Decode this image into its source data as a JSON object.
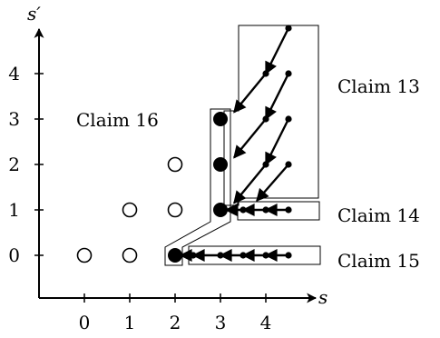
{
  "axes": {
    "x_label": "s",
    "y_label": "s′",
    "x_ticks": [
      "0",
      "1",
      "2",
      "3",
      "4"
    ],
    "y_ticks": [
      "0",
      "1",
      "2",
      "3",
      "4"
    ]
  },
  "claims": {
    "claim13": "Claim 13",
    "claim14": "Claim 14",
    "claim15": "Claim 15",
    "claim16": "Claim 16"
  },
  "points": {
    "open": [
      [
        0,
        0
      ],
      [
        1,
        0
      ],
      [
        1,
        1
      ],
      [
        2,
        1
      ],
      [
        2,
        2
      ]
    ],
    "filled_large": [
      [
        2,
        0
      ],
      [
        3,
        1
      ],
      [
        3,
        2
      ],
      [
        3,
        3
      ]
    ],
    "filled_small": [
      [
        2.4,
        0
      ],
      [
        3,
        0
      ],
      [
        3.5,
        0
      ],
      [
        4,
        0
      ],
      [
        4.5,
        0
      ],
      [
        3.5,
        1
      ],
      [
        4,
        1
      ],
      [
        4.5,
        1
      ],
      [
        4,
        2
      ],
      [
        4.5,
        2
      ],
      [
        4,
        3
      ],
      [
        4.5,
        3
      ],
      [
        4,
        4
      ],
      [
        4.5,
        4
      ],
      [
        4.5,
        5
      ]
    ]
  },
  "arrows": [
    {
      "from": [
        4.5,
        5
      ],
      "to": [
        4,
        4
      ]
    },
    {
      "from": [
        4,
        4
      ],
      "to": [
        3.3,
        3.15
      ]
    },
    {
      "from": [
        4.5,
        4
      ],
      "to": [
        4,
        3
      ]
    },
    {
      "from": [
        4,
        3
      ],
      "to": [
        3.3,
        2.15
      ]
    },
    {
      "from": [
        4.5,
        3
      ],
      "to": [
        4,
        2
      ]
    },
    {
      "from": [
        4,
        2
      ],
      "to": [
        3.3,
        1.15
      ]
    },
    {
      "from": [
        4.5,
        2
      ],
      "to": [
        3.8,
        1.2
      ]
    },
    {
      "from": [
        4.5,
        1
      ],
      "to": [
        4,
        1
      ]
    },
    {
      "from": [
        4,
        1
      ],
      "to": [
        3.5,
        1
      ]
    },
    {
      "from": [
        3.5,
        1
      ],
      "to": [
        3.12,
        1
      ]
    },
    {
      "from": [
        4.5,
        0
      ],
      "to": [
        4,
        0
      ]
    },
    {
      "from": [
        4,
        0
      ],
      "to": [
        3.5,
        0
      ]
    },
    {
      "from": [
        3.5,
        0
      ],
      "to": [
        3,
        0
      ]
    },
    {
      "from": [
        3,
        0
      ],
      "to": [
        2.4,
        0
      ]
    },
    {
      "from": [
        2.4,
        0
      ],
      "to": [
        2.12,
        0
      ]
    }
  ]
}
